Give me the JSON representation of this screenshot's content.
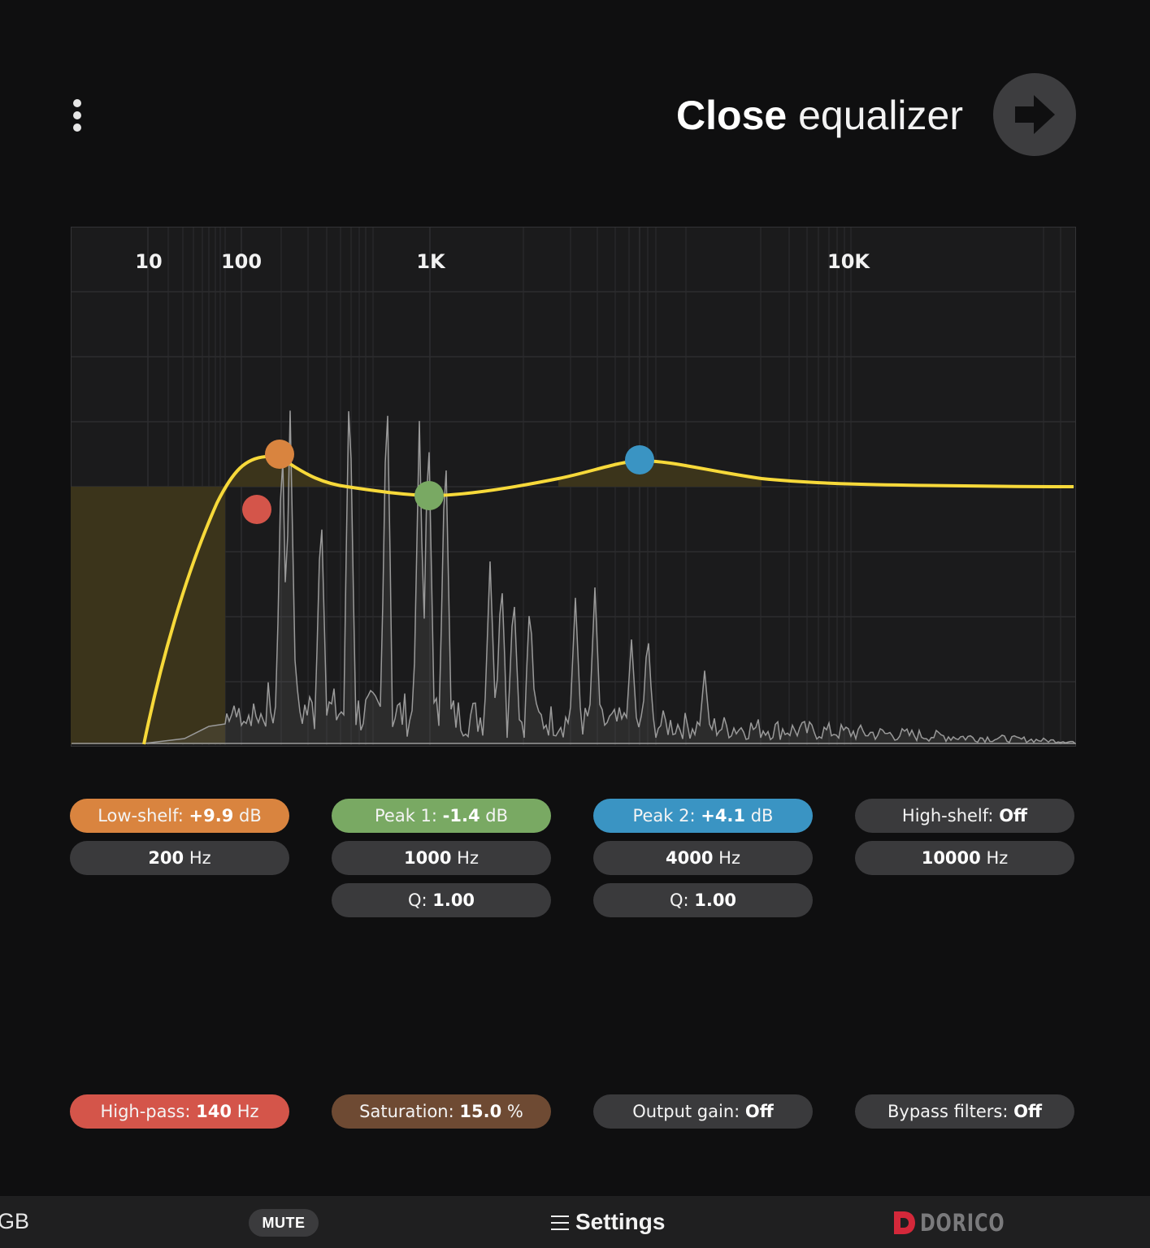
{
  "header": {
    "menu_icon": "more-vertical-icon",
    "title_bold": "Close",
    "title_rest": " equalizer",
    "close_icon": "arrow-right-icon"
  },
  "graph": {
    "freq_labels": [
      "10",
      "100",
      "1K",
      "10K"
    ],
    "colors": {
      "curve": "#f7d93a",
      "low_shelf": "#d9843f",
      "peak1": "#79a963",
      "peak2": "#3a94c3",
      "high_pass": "#d4554a"
    }
  },
  "bands": {
    "low_shelf": {
      "label": "Low-shelf:",
      "gain": "+9.9",
      "gain_unit": "dB",
      "freq": "200",
      "freq_unit": "Hz"
    },
    "peak1": {
      "label": "Peak 1:",
      "gain": "-1.4",
      "gain_unit": "dB",
      "freq": "1000",
      "freq_unit": "Hz",
      "q_label": "Q:",
      "q": "1.00"
    },
    "peak2": {
      "label": "Peak 2:",
      "gain": "+4.1",
      "gain_unit": "dB",
      "freq": "4000",
      "freq_unit": "Hz",
      "q_label": "Q:",
      "q": "1.00"
    },
    "high_shelf": {
      "label": "High-shelf:",
      "gain": "Off",
      "freq": "10000",
      "freq_unit": "Hz"
    }
  },
  "controls": {
    "high_pass": {
      "label": "High-pass:",
      "value": "140",
      "unit": "Hz"
    },
    "saturation": {
      "label": "Saturation:",
      "value": "15.0",
      "unit": "%"
    },
    "output_gain": {
      "label": "Output gain:",
      "value": "Off"
    },
    "bypass": {
      "label": "Bypass filters:",
      "value": "Off"
    }
  },
  "footer": {
    "left_text": "GB",
    "mute": "MUTE",
    "settings_icon": "hamburger-menu-icon",
    "settings": "Settings",
    "brand_icon": "dorico-logo-icon",
    "brand": "DORICO",
    "brand_color": "#d4283a"
  }
}
